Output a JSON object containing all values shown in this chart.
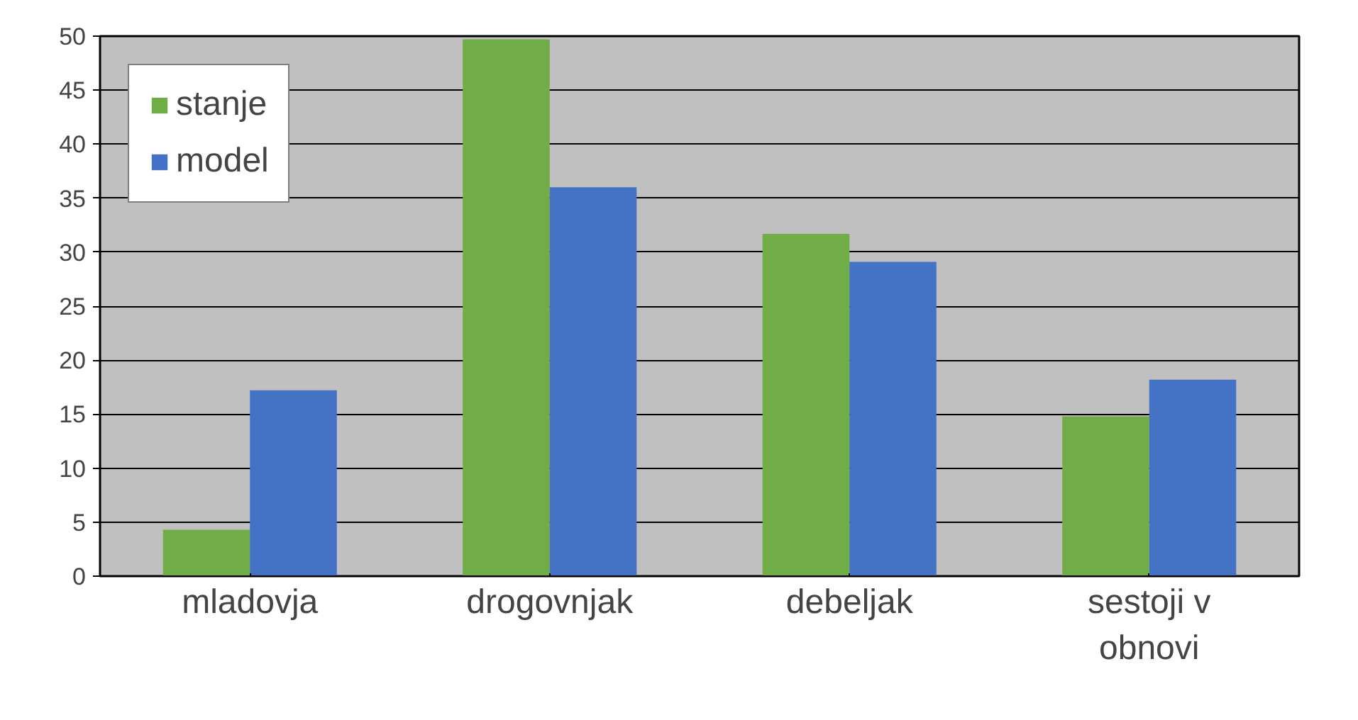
{
  "chart_data": {
    "type": "bar",
    "categories": [
      "mladovja",
      "drogovnjak",
      "debeljak",
      "sestoji v obnovi"
    ],
    "series": [
      {
        "name": "stanje",
        "color": "#70ad47",
        "values": [
          4.3,
          49.7,
          31.7,
          14.8
        ]
      },
      {
        "name": "model",
        "color": "#4472c4",
        "values": [
          17.2,
          36.0,
          29.1,
          18.2
        ]
      }
    ],
    "ylim": [
      0,
      50
    ],
    "yticks": [
      0,
      5,
      10,
      15,
      20,
      25,
      30,
      35,
      40,
      45,
      50
    ],
    "grid": "y",
    "legend": "top left"
  }
}
